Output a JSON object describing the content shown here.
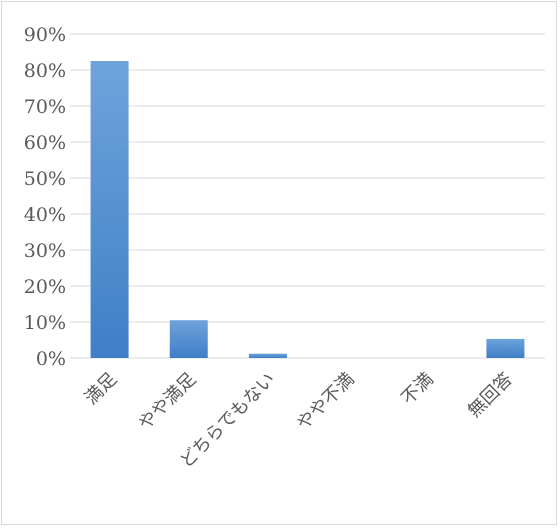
{
  "chart_data": {
    "type": "bar",
    "categories": [
      "満足",
      "やや満足",
      "どちらでもない",
      "やや不満",
      "不満",
      "無回答"
    ],
    "values": [
      82.5,
      10.5,
      1.2,
      0,
      0,
      5.3
    ],
    "yticks": [
      "0%",
      "10%",
      "20%",
      "30%",
      "40%",
      "50%",
      "60%",
      "70%",
      "80%",
      "90%"
    ],
    "ylim": [
      0,
      90
    ],
    "unit": "%",
    "grid": true,
    "legend": "none",
    "colors": {
      "bar_top": "#6fa3dc",
      "bar_bottom": "#3f7fc7",
      "grid": "#d9d9d9",
      "text": "#595959",
      "border": "#d9d9d9"
    }
  }
}
